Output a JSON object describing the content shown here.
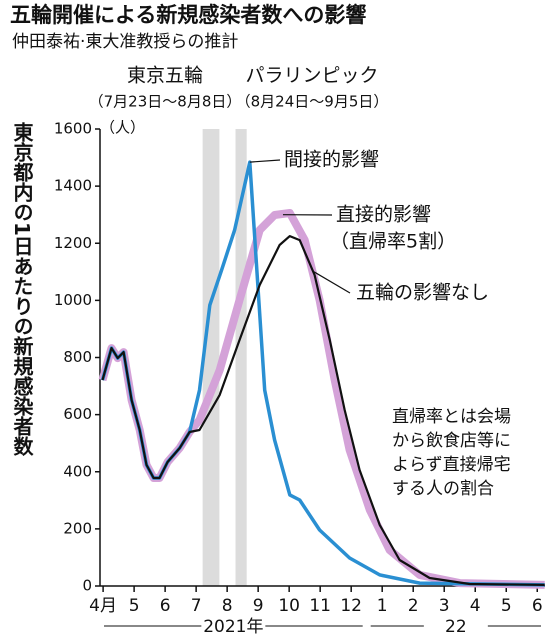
{
  "chart_data": {
    "type": "line",
    "title": "五輪開催による新規感染者数への影響",
    "subtitle": "仲田泰祐·東大准教授らの推計",
    "y_label": "東京都内の1日あたりの新規感染者数",
    "y_unit": "（人）",
    "ylim": [
      0,
      1600
    ],
    "yticks": [
      0,
      200,
      400,
      600,
      800,
      1000,
      1200,
      1400,
      1600
    ],
    "xlim": [
      0.4,
      14.75
    ],
    "xticks": [
      {
        "value": 0.5,
        "label": "4月"
      },
      {
        "value": 1.5,
        "label": "5"
      },
      {
        "value": 2.5,
        "label": "6"
      },
      {
        "value": 3.5,
        "label": "7"
      },
      {
        "value": 4.5,
        "label": "8"
      },
      {
        "value": 5.5,
        "label": "9"
      },
      {
        "value": 6.5,
        "label": "10"
      },
      {
        "value": 7.5,
        "label": "11"
      },
      {
        "value": 8.5,
        "label": "12"
      },
      {
        "value": 9.5,
        "label": "1"
      },
      {
        "value": 10.5,
        "label": "2"
      },
      {
        "value": 11.5,
        "label": "3"
      },
      {
        "value": 12.5,
        "label": "4"
      },
      {
        "value": 13.5,
        "label": "5"
      },
      {
        "value": 14.5,
        "label": "6"
      }
    ],
    "year_labels": [
      {
        "label": "2021年",
        "range": [
          0,
          9
        ]
      },
      {
        "label": "22",
        "range": [
          9,
          14.75
        ]
      }
    ],
    "bands": [
      {
        "label": "東京五輪",
        "sublabel": "（7月23日～8月8日）",
        "range": [
          3.71,
          4.25
        ]
      },
      {
        "label": "パラリンピック",
        "sublabel": "（8月24日～9月5日）",
        "range": [
          4.77,
          5.13
        ]
      }
    ],
    "series": [
      {
        "name": "直接的影響",
        "note": "（直帰率5割）",
        "color": "#d4a2d8",
        "x": [
          0.48,
          0.77,
          0.97,
          1.16,
          1.42,
          1.68,
          1.9,
          2.13,
          2.32,
          2.58,
          2.97,
          3.29,
          3.61,
          4.26,
          4.9,
          5.55,
          6.03,
          6.52,
          7.0,
          7.48,
          7.97,
          8.45,
          9.1,
          9.74,
          10.71,
          12.0,
          14.74
        ],
        "values": [
          721,
          833,
          798,
          819,
          651,
          546,
          424,
          378,
          378,
          434,
          483,
          539,
          581,
          756,
          1001,
          1246,
          1299,
          1306,
          1211,
          1001,
          721,
          476,
          266,
          126,
          39,
          10,
          4
        ]
      },
      {
        "name": "間接的影響",
        "color": "#2a8fd2",
        "x": [
          0.48,
          0.77,
          0.97,
          1.16,
          1.42,
          1.68,
          1.9,
          2.13,
          2.32,
          2.58,
          2.97,
          3.29,
          3.61,
          3.94,
          4.32,
          4.74,
          5.23,
          5.48,
          5.71,
          6.03,
          6.52,
          6.84,
          7.48,
          8.45,
          9.42,
          10.71,
          14.74
        ],
        "values": [
          721,
          833,
          798,
          819,
          651,
          546,
          424,
          378,
          378,
          434,
          483,
          539,
          686,
          983,
          1106,
          1246,
          1484,
          1071,
          686,
          511,
          319,
          301,
          196,
          98,
          39,
          10,
          4
        ]
      },
      {
        "name": "五輪の影響なし",
        "color": "#111111",
        "x": [
          0.48,
          0.77,
          0.97,
          1.16,
          1.42,
          1.68,
          1.9,
          2.13,
          2.32,
          2.58,
          2.97,
          3.29,
          3.61,
          4.26,
          4.9,
          5.55,
          6.19,
          6.52,
          6.84,
          7.32,
          7.81,
          8.29,
          8.77,
          9.42,
          10.06,
          11.03,
          12.32,
          14.74
        ],
        "values": [
          721,
          833,
          798,
          819,
          651,
          546,
          424,
          378,
          378,
          434,
          483,
          539,
          546,
          669,
          861,
          1054,
          1194,
          1225,
          1211,
          1089,
          861,
          616,
          406,
          214,
          91,
          28,
          7,
          4
        ]
      }
    ],
    "note": [
      "直帰率とは会場",
      "から飲食店等に",
      "よらず直接帰宅",
      "する人の割合"
    ]
  }
}
